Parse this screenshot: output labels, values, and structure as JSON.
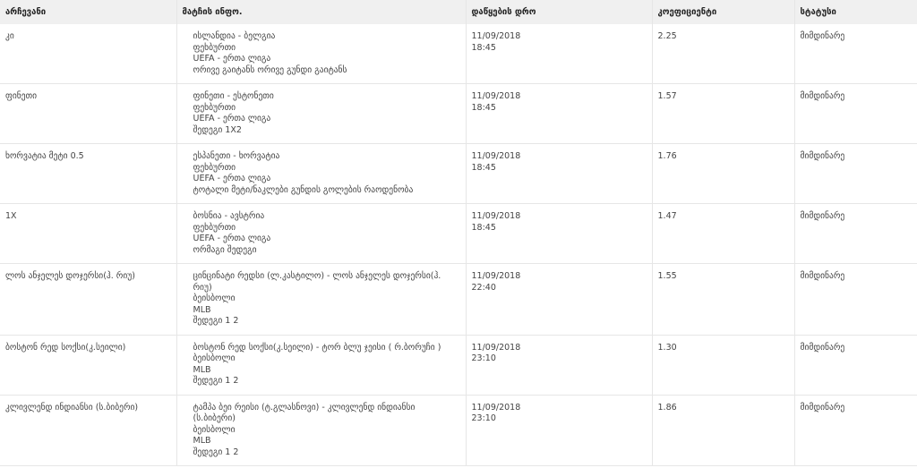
{
  "table": {
    "header": [
      "არჩევანი",
      "მატჩის ინფო.",
      "დაწყების დრო",
      "კოეფიციენტი",
      "სტატუსი"
    ],
    "rows": [
      {
        "choice": "კი",
        "match": [
          "ისლანდია - ბელგია",
          "ფეხბურთი",
          "UEFA - ერთა ლიგა",
          "ორივე გაიტანს ორივე გუნდი გაიტანს"
        ],
        "date": "11/09/2018",
        "time": "18:45",
        "odds": "2.25",
        "status": "მიმდინარე"
      },
      {
        "choice": "ფინეთი",
        "match": [
          "ფინეთი - ესტონეთი",
          "ფეხბურთი",
          "UEFA - ერთა ლიგა",
          "შედეგი 1X2"
        ],
        "date": "11/09/2018",
        "time": "18:45",
        "odds": "1.57",
        "status": "მიმდინარე"
      },
      {
        "choice": "ხორვატია მეტი 0.5",
        "match": [
          "ესპანეთი - ხორვატია",
          "ფეხბურთი",
          "UEFA - ერთა ლიგა",
          "ტოტალი მეტი/ნაკლები გუნდის გოლების რაოდენობა"
        ],
        "date": "11/09/2018",
        "time": "18:45",
        "odds": "1.76",
        "status": "მიმდინარე"
      },
      {
        "choice": "1X",
        "match": [
          "ბოსნია - ავსტრია",
          "ფეხბურთი",
          "UEFA - ერთა ლიგა",
          "ორმაგი შედეგი"
        ],
        "date": "11/09/2018",
        "time": "18:45",
        "odds": "1.47",
        "status": "მიმდინარე"
      },
      {
        "choice": "ლოს ანჯელეს დოჯერსი(ჰ. რიუ)",
        "match": [
          "ცინცინატი რედსი (ლ.კასტილო) - ლოს ანჯელეს დოჯერსი(ჰ. რიუ)",
          "ბეისბოლი",
          "MLB",
          "შედეგი 1 2"
        ],
        "date": "11/09/2018",
        "time": "22:40",
        "odds": "1.55",
        "status": "მიმდინარე"
      },
      {
        "choice": "ბოსტონ რედ სოქსი(კ.სეილი)",
        "match": [
          "ბოსტონ რედ სოქსი(კ.სეილი) - ტორ ბლუ ჯეისი ( რ.ბორუჩი )",
          "ბეისბოლი",
          "MLB",
          "შედეგი 1 2"
        ],
        "date": "11/09/2018",
        "time": "23:10",
        "odds": "1.30",
        "status": "მიმდინარე"
      },
      {
        "choice": "კლივლენდ ინდიანსი (ს.ბიბერი)",
        "match": [
          "ტამპა ბეი რეისი (ტ.გლასნოვი) - კლივლენდ ინდიანსი (ს.ბიბერი)",
          "ბეისბოლი",
          "MLB",
          "შედეგი 1 2"
        ],
        "date": "11/09/2018",
        "time": "23:10",
        "odds": "1.86",
        "status": "მიმდინარე"
      }
    ]
  }
}
